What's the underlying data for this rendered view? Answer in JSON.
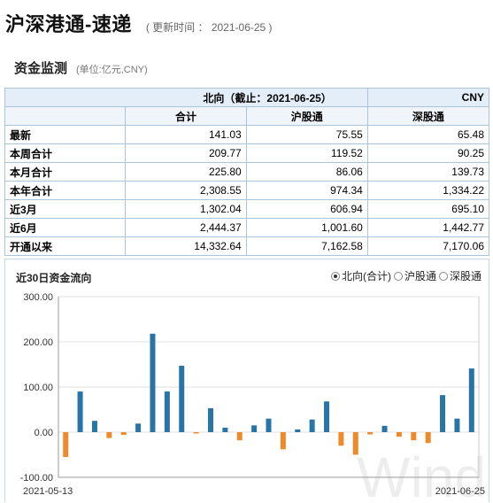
{
  "header": {
    "title": "沪深港通-速递",
    "update_label": "( 更新时间 ： 2021-06-25 )"
  },
  "section": {
    "title": "资金监测",
    "unit": "(单位:亿元,CNY)"
  },
  "table": {
    "group_header": "北向（截止：2021-06-25）",
    "currency": "CNY",
    "columns": [
      "合计",
      "沪股通",
      "深股通"
    ],
    "rows": [
      {
        "label": "最新",
        "values": [
          "141.03",
          "75.55",
          "65.48"
        ]
      },
      {
        "label": "本周合计",
        "values": [
          "209.77",
          "119.52",
          "90.25"
        ]
      },
      {
        "label": "本月合计",
        "values": [
          "225.80",
          "86.06",
          "139.73"
        ]
      },
      {
        "label": "本年合计",
        "values": [
          "2,308.55",
          "974.34",
          "1,334.22"
        ]
      },
      {
        "label": "近3月",
        "values": [
          "1,302.04",
          "606.94",
          "695.10"
        ]
      },
      {
        "label": "近6月",
        "values": [
          "2,444.37",
          "1,001.60",
          "1,442.77"
        ]
      },
      {
        "label": "开通以来",
        "values": [
          "14,332.64",
          "7,162.58",
          "7,170.06"
        ]
      }
    ]
  },
  "chart_section": {
    "title": "近30日资金流向",
    "options": [
      {
        "label": "北向(合计)",
        "selected": true
      },
      {
        "label": "沪股通",
        "selected": false
      },
      {
        "label": "深股通",
        "selected": false
      }
    ]
  },
  "colors": {
    "positive": "#2874a6",
    "negative": "#ee8a2c",
    "grid": "#e0e0e0"
  },
  "chart_data": {
    "type": "bar",
    "ylim": [
      -100,
      300
    ],
    "yticks": [
      "-100.00",
      "0.00",
      "100.00",
      "200.00",
      "300.00"
    ],
    "xtick_labels": [
      "2021-05-13",
      "2021-06-25"
    ],
    "values": [
      -55,
      90,
      25,
      -13,
      -6,
      19,
      218,
      90,
      147,
      -3,
      53,
      10,
      -18,
      15,
      30,
      -38,
      6,
      28,
      68,
      -30,
      -50,
      -5,
      14,
      -10,
      -18,
      -24,
      82,
      30,
      141
    ],
    "watermark": "Wind"
  }
}
